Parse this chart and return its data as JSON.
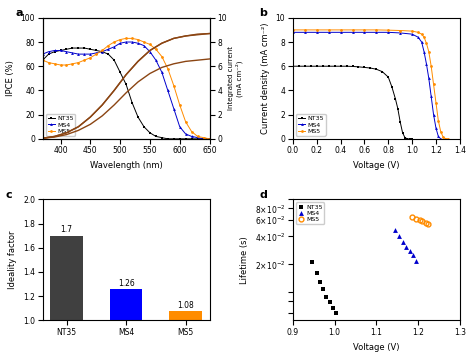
{
  "panel_a": {
    "nt35_ipce_x": [
      370,
      380,
      390,
      400,
      410,
      420,
      430,
      440,
      450,
      460,
      470,
      480,
      490,
      500,
      510,
      520,
      530,
      540,
      550,
      560,
      570,
      580,
      590,
      600,
      610,
      620,
      630,
      640,
      650
    ],
    "nt35_ipce_y": [
      65,
      70,
      72,
      73,
      74,
      75,
      75,
      75,
      74,
      73,
      72,
      70,
      65,
      55,
      45,
      30,
      18,
      10,
      5,
      2,
      1,
      0,
      0,
      0,
      0,
      0,
      0,
      0,
      0
    ],
    "ms4_ipce_x": [
      370,
      380,
      390,
      400,
      410,
      420,
      430,
      440,
      450,
      460,
      470,
      480,
      490,
      500,
      510,
      520,
      530,
      540,
      550,
      560,
      570,
      580,
      590,
      600,
      610,
      620,
      630,
      640,
      650
    ],
    "ms4_ipce_y": [
      70,
      72,
      73,
      73,
      72,
      71,
      70,
      70,
      70,
      71,
      72,
      74,
      76,
      79,
      80,
      80,
      79,
      77,
      72,
      65,
      55,
      40,
      25,
      10,
      4,
      2,
      1,
      0,
      0
    ],
    "ms5_ipce_x": [
      370,
      380,
      390,
      400,
      410,
      420,
      430,
      440,
      450,
      460,
      470,
      480,
      490,
      500,
      510,
      520,
      530,
      540,
      550,
      560,
      570,
      580,
      590,
      600,
      610,
      620,
      630,
      640,
      650
    ],
    "ms5_ipce_y": [
      65,
      63,
      62,
      61,
      61,
      62,
      63,
      65,
      67,
      70,
      73,
      77,
      80,
      82,
      83,
      83,
      82,
      80,
      78,
      74,
      68,
      58,
      44,
      28,
      14,
      6,
      2,
      1,
      0
    ],
    "nt35_int_x": [
      370,
      390,
      410,
      430,
      450,
      470,
      490,
      510,
      530,
      550,
      570,
      590,
      610,
      630,
      650
    ],
    "nt35_int_y": [
      0.05,
      0.15,
      0.35,
      0.7,
      1.2,
      1.9,
      2.8,
      3.8,
      4.7,
      5.4,
      5.9,
      6.2,
      6.4,
      6.5,
      6.6
    ],
    "ms4_int_x": [
      370,
      390,
      410,
      430,
      450,
      470,
      490,
      510,
      530,
      550,
      570,
      590,
      610,
      630,
      650
    ],
    "ms4_int_y": [
      0.05,
      0.2,
      0.5,
      1.0,
      1.8,
      2.8,
      4.0,
      5.3,
      6.4,
      7.3,
      7.9,
      8.3,
      8.5,
      8.6,
      8.7
    ],
    "ms5_int_x": [
      370,
      390,
      410,
      430,
      450,
      470,
      490,
      510,
      530,
      550,
      570,
      590,
      610,
      630,
      650
    ],
    "ms5_int_y": [
      0.05,
      0.2,
      0.5,
      1.0,
      1.8,
      2.8,
      4.0,
      5.3,
      6.4,
      7.3,
      7.9,
      8.3,
      8.5,
      8.65,
      8.7
    ],
    "xlabel": "Wavelength (nm)",
    "ylabel_left": "IPCE (%)",
    "ylabel_right": "Integrated current\n(mA cm⁻²)",
    "xlim": [
      370,
      650
    ],
    "ylim_left": [
      0,
      100
    ],
    "ylim_right": [
      0,
      10
    ]
  },
  "panel_b": {
    "nt35_x": [
      0.0,
      0.05,
      0.1,
      0.15,
      0.2,
      0.25,
      0.3,
      0.35,
      0.4,
      0.45,
      0.5,
      0.55,
      0.6,
      0.65,
      0.7,
      0.75,
      0.8,
      0.83,
      0.86,
      0.88,
      0.9,
      0.92,
      0.94,
      0.96,
      0.98,
      1.0
    ],
    "nt35_y": [
      6.0,
      6.0,
      6.0,
      6.0,
      6.0,
      6.0,
      6.0,
      6.0,
      6.0,
      6.0,
      5.98,
      5.95,
      5.9,
      5.85,
      5.75,
      5.55,
      5.1,
      4.3,
      3.3,
      2.5,
      1.4,
      0.5,
      0.1,
      0.0,
      0.0,
      0.0
    ],
    "ms4_x": [
      0.0,
      0.1,
      0.2,
      0.3,
      0.4,
      0.5,
      0.6,
      0.7,
      0.8,
      0.9,
      1.0,
      1.05,
      1.08,
      1.1,
      1.12,
      1.14,
      1.16,
      1.18,
      1.2,
      1.22,
      1.24
    ],
    "ms4_y": [
      8.8,
      8.8,
      8.8,
      8.8,
      8.8,
      8.8,
      8.8,
      8.8,
      8.8,
      8.75,
      8.65,
      8.4,
      8.0,
      7.2,
      6.2,
      5.0,
      3.5,
      2.0,
      0.9,
      0.2,
      0.0
    ],
    "ms5_x": [
      0.0,
      0.1,
      0.2,
      0.3,
      0.4,
      0.5,
      0.6,
      0.7,
      0.8,
      0.9,
      1.0,
      1.05,
      1.08,
      1.1,
      1.12,
      1.14,
      1.16,
      1.18,
      1.2,
      1.22,
      1.24,
      1.26,
      1.28,
      1.3
    ],
    "ms5_y": [
      9.0,
      9.0,
      9.0,
      9.0,
      9.0,
      9.0,
      9.0,
      9.0,
      8.98,
      8.95,
      8.9,
      8.8,
      8.65,
      8.4,
      7.9,
      7.2,
      6.0,
      4.5,
      3.0,
      1.5,
      0.6,
      0.15,
      0.02,
      0.0
    ],
    "xlabel": "Voltage (V)",
    "ylabel": "Current density (mA cm⁻²)",
    "xlim": [
      0,
      1.4
    ],
    "ylim": [
      0,
      10
    ],
    "xticks": [
      0,
      0.2,
      0.4,
      0.6,
      0.8,
      1.0,
      1.2,
      1.4
    ],
    "yticks": [
      0,
      2,
      4,
      6,
      8,
      10
    ]
  },
  "panel_c": {
    "categories": [
      "NT35",
      "MS4",
      "MS5"
    ],
    "values": [
      1.7,
      1.26,
      1.08
    ],
    "colors": [
      "#404040",
      "#0000ff",
      "#ff8c00"
    ],
    "ylabel": "Ideality factor",
    "ylim": [
      1.0,
      2.0
    ],
    "yticks": [
      1.0,
      1.2,
      1.4,
      1.6,
      1.8,
      2.0
    ]
  },
  "panel_d": {
    "nt35_x": [
      0.946,
      0.958,
      0.965,
      0.972,
      0.98,
      0.988,
      0.995,
      1.003
    ],
    "nt35_y": [
      0.021,
      0.016,
      0.013,
      0.011,
      0.009,
      0.0078,
      0.0068,
      0.006
    ],
    "ms4_x": [
      1.145,
      1.155,
      1.165,
      1.17,
      1.18,
      1.188,
      1.195
    ],
    "ms4_y": [
      0.047,
      0.04,
      0.035,
      0.031,
      0.028,
      0.025,
      0.022
    ],
    "ms5_x": [
      1.185,
      1.195,
      1.205,
      1.21,
      1.218,
      1.225
    ],
    "ms5_y": [
      0.065,
      0.062,
      0.06,
      0.058,
      0.056,
      0.054
    ],
    "xlabel": "Voltage (V)",
    "ylabel": "Lifetime (s)",
    "xlim": [
      0.9,
      1.3
    ],
    "ylim_log_min": 0.005,
    "ylim_log_max": 0.1,
    "yticks": [
      0.006,
      0.008,
      0.01,
      0.02,
      0.04,
      0.06,
      0.08
    ]
  },
  "colors": {
    "nt35": "#000000",
    "ms4": "#0000cc",
    "ms5": "#ff8c00"
  },
  "labels": {
    "nt35": "NT35",
    "ms4": "MS4",
    "ms5": "MS5"
  }
}
